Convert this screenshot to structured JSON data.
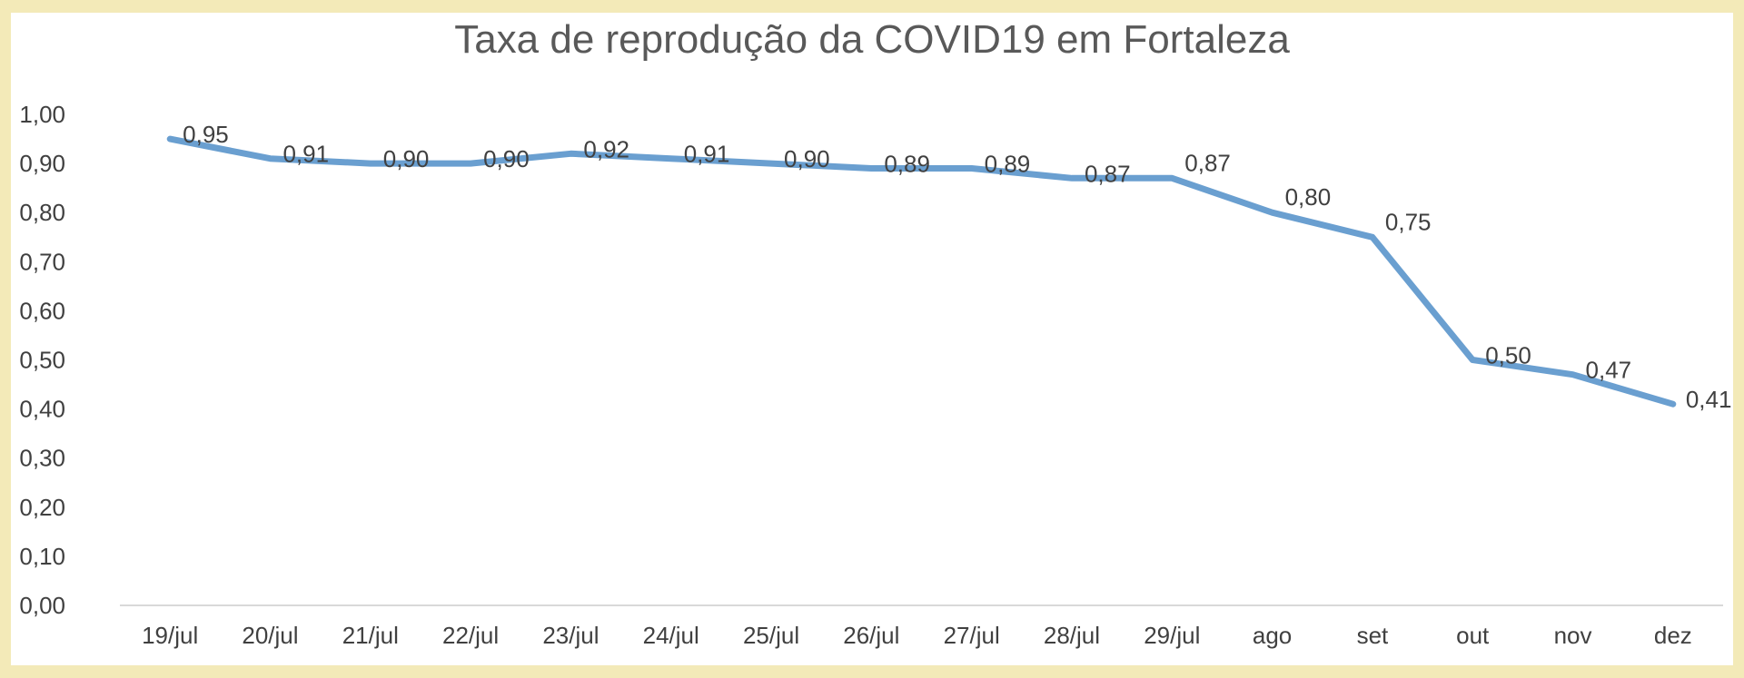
{
  "chart_data": {
    "type": "line",
    "title": "Taxa de reprodução da COVID19 em Fortaleza",
    "xlabel": "",
    "ylabel": "",
    "categories": [
      "19/jul",
      "20/jul",
      "21/jul",
      "22/jul",
      "23/jul",
      "24/jul",
      "25/jul",
      "26/jul",
      "27/jul",
      "28/jul",
      "29/jul",
      "ago",
      "set",
      "out",
      "nov",
      "dez"
    ],
    "series": [
      {
        "values": [
          0.95,
          0.91,
          0.9,
          0.9,
          0.92,
          0.91,
          0.9,
          0.89,
          0.89,
          0.87,
          0.87,
          0.8,
          0.75,
          0.5,
          0.47,
          0.41
        ]
      }
    ],
    "data_labels": [
      "0,95",
      "0,91",
      "0,90",
      "0,90",
      "0,92",
      "0,91",
      "0,90",
      "0,89",
      "0,89",
      "0,87",
      "0,87",
      "0,80",
      "0,75",
      "0,50",
      "0,47",
      "0,41"
    ],
    "y_tick_labels": [
      "0,00",
      "0,10",
      "0,20",
      "0,30",
      "0,40",
      "0,50",
      "0,60",
      "0,70",
      "0,80",
      "0,90",
      "1,00"
    ],
    "ylim": [
      0,
      1
    ],
    "grid": false,
    "legend": "none",
    "colors": {
      "series": "#6a9fd0",
      "frame": "#f3eab8",
      "background": "#ffffff"
    }
  }
}
